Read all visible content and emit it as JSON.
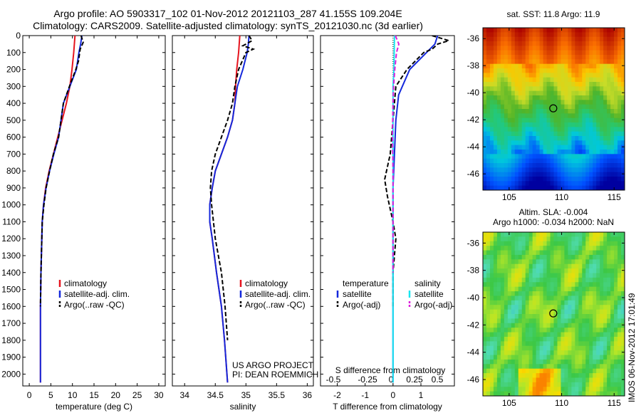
{
  "header": {
    "line1": "Argo profile: AO 5903317_102 01-Nov-2012 20121103_287 41.155S 109.204E",
    "line2": "Climatology: CARS2009. Satellite-adjusted climatology: synTS_20121030.nc (3d earlier)"
  },
  "footer_stamp": "IMOS 06-Nov-2012 17:01:49",
  "colors": {
    "climatology": "#e6141e",
    "satellite": "#1428dc",
    "argo": "#000000",
    "sat_salinity": "#19e6f0",
    "argo_salinity": "#dc1edc"
  },
  "chart_data": [
    {
      "type": "line",
      "id": "temperature",
      "xlabel": "temperature (deg C)",
      "ylabel": "",
      "xlim": [
        -1.5,
        31.5
      ],
      "ylim": [
        2070,
        0
      ],
      "xticks": [
        0,
        5,
        10,
        15,
        20,
        25,
        30
      ],
      "yticks": [
        0,
        100,
        200,
        300,
        400,
        500,
        600,
        700,
        800,
        900,
        1000,
        1100,
        1200,
        1300,
        1400,
        1500,
        1600,
        1700,
        1800,
        1900,
        2000
      ],
      "series": [
        {
          "name": "climatology",
          "style": "solid",
          "color": "#e6141e",
          "x": [
            10.6,
            10.3,
            9.9,
            9.4,
            8.6,
            7.6,
            6.6,
            5.6,
            4.6,
            3.8,
            3.3,
            3.0,
            2.9,
            2.7,
            2.6,
            2.6,
            2.6
          ],
          "y": [
            0,
            100,
            200,
            300,
            400,
            500,
            600,
            700,
            800,
            900,
            1000,
            1100,
            1200,
            1400,
            1600,
            1800,
            2050
          ]
        },
        {
          "name": "satellite-adj. clim.",
          "style": "solid",
          "color": "#1428dc",
          "x": [
            12.2,
            11.9,
            11.5,
            10.9,
            9.4,
            7.9,
            6.8,
            5.7,
            4.7,
            3.9,
            3.3,
            3.0,
            2.9,
            2.7,
            2.6,
            2.6,
            2.6
          ],
          "y": [
            0,
            50,
            100,
            200,
            300,
            400,
            600,
            700,
            800,
            900,
            1000,
            1100,
            1200,
            1400,
            1600,
            1800,
            2050
          ]
        },
        {
          "name": "Argo(..raw -QC)",
          "style": "dashed",
          "color": "#000000",
          "x": [
            12.0,
            12.5,
            11.8,
            11.4,
            10.8,
            9.3,
            7.9,
            6.8,
            5.6,
            4.7,
            3.9,
            3.4,
            3.0,
            2.9,
            2.7,
            2.6
          ],
          "y": [
            0,
            40,
            80,
            150,
            200,
            300,
            400,
            600,
            700,
            800,
            900,
            1000,
            1100,
            1200,
            1400,
            1600
          ]
        }
      ],
      "legend": [
        "climatology",
        "satellite-adj. clim.",
        "Argo(..raw -QC)"
      ],
      "legend_position": "lower-center"
    },
    {
      "type": "line",
      "id": "salinity",
      "xlabel": "salinity",
      "ylabel": "",
      "xlim": [
        33.8,
        36.1
      ],
      "ylim": [
        2070,
        0
      ],
      "xticks": [
        34,
        34.5,
        35,
        35.5,
        36
      ],
      "xticklabels": [
        "34",
        "34.5",
        "35",
        "35.5",
        "36"
      ],
      "series": [
        {
          "name": "climatology",
          "style": "solid",
          "color": "#e6141e",
          "x": [
            34.9,
            34.88,
            34.85,
            34.83,
            34.82,
            34.78,
            34.7,
            34.6,
            34.5,
            34.45,
            34.41,
            34.41,
            34.45,
            34.52,
            34.6,
            34.65,
            34.7
          ],
          "y": [
            0,
            100,
            200,
            300,
            400,
            500,
            600,
            700,
            800,
            900,
            1000,
            1100,
            1200,
            1400,
            1600,
            1800,
            2050
          ]
        },
        {
          "name": "satellite-adj. clim.",
          "style": "solid",
          "color": "#1428dc",
          "x": [
            35.05,
            35.04,
            35.02,
            34.95,
            34.86,
            34.82,
            34.78,
            34.7,
            34.6,
            34.5,
            34.45,
            34.41,
            34.41,
            34.45,
            34.52,
            34.6,
            34.65,
            34.7
          ],
          "y": [
            0,
            50,
            100,
            200,
            300,
            400,
            500,
            600,
            700,
            800,
            900,
            1000,
            1100,
            1200,
            1400,
            1600,
            1800,
            2050
          ]
        },
        {
          "name": "Argo(..raw -QC)",
          "style": "dashed",
          "color": "#000000",
          "x": [
            35.05,
            35.1,
            34.95,
            35.12,
            35.0,
            34.88,
            34.82,
            34.78,
            34.7,
            34.6,
            34.5,
            34.44,
            34.42,
            34.44,
            34.5,
            34.6,
            34.66,
            34.7
          ],
          "y": [
            0,
            30,
            60,
            80,
            100,
            200,
            300,
            400,
            500,
            600,
            700,
            800,
            900,
            1000,
            1200,
            1400,
            1600,
            1800
          ]
        }
      ],
      "legend": [
        "climatology",
        "satellite-adj. clim.",
        "Argo(..raw -QC)"
      ],
      "legend_position": "lower-center",
      "annotation": [
        "US ARGO PROJECT",
        "PI: DEAN ROEMMICH"
      ]
    },
    {
      "type": "line",
      "id": "difference",
      "xlabel": "T difference from climatology",
      "xlabel_top": "S difference from climatology",
      "ylabel": "",
      "xlim": [
        -2.6,
        2.2
      ],
      "ylim": [
        2070,
        0
      ],
      "xticks": [
        -2,
        -1,
        0,
        1
      ],
      "top_xticks": [
        -0.5,
        -0.25,
        0,
        0.25,
        0.5
      ],
      "zero_line": "dotted",
      "series": [
        {
          "name": "temperature satellite",
          "style": "solid",
          "color": "#1428dc",
          "axis": "T",
          "x": [
            1.6,
            1.5,
            1.2,
            0.6,
            0.2,
            0.1,
            0.05,
            0.0,
            0.0,
            0.0,
            0.0,
            0.0,
            0.0
          ],
          "y": [
            0,
            50,
            100,
            200,
            350,
            500,
            700,
            900,
            1100,
            1300,
            1600,
            1800,
            2050
          ]
        },
        {
          "name": "temperature Argo(-adj)",
          "style": "dashed",
          "color": "#000000",
          "axis": "T",
          "x": [
            1.4,
            2.0,
            1.6,
            1.4,
            1.1,
            0.5,
            0.1,
            0.0,
            -0.1,
            -0.3,
            -0.2,
            0.0,
            0.1,
            0.0,
            0.0
          ],
          "y": [
            0,
            30,
            50,
            80,
            100,
            200,
            300,
            500,
            700,
            850,
            950,
            1100,
            1200,
            1400,
            1600
          ]
        },
        {
          "name": "salinity satellite",
          "style": "solid",
          "color": "#19e6f0",
          "axis": "S",
          "x": [
            0.05,
            0.04,
            0.03,
            0.0,
            0.0,
            0.0,
            0.0,
            0.0,
            0.0,
            0.0
          ],
          "y": [
            0,
            100,
            200,
            300,
            500,
            700,
            900,
            1200,
            1600,
            2050
          ]
        },
        {
          "name": "salinity Argo(-adj)",
          "style": "dashed",
          "color": "#dc1edc",
          "axis": "S",
          "x": [
            0.08,
            0.2,
            0.12,
            0.06,
            0.02,
            0.0,
            -0.02,
            0.0,
            0.0,
            0.0
          ],
          "y": [
            0,
            50,
            100,
            200,
            300,
            400,
            600,
            800,
            1000,
            1400
          ]
        }
      ],
      "legend_titles": [
        "temperature",
        "salinity"
      ],
      "legend_left": [
        "satellite",
        "Argo(-adj)"
      ],
      "legend_right": [
        "satellite",
        "Argo(-adj)"
      ]
    },
    {
      "type": "heatmap",
      "id": "sst-map",
      "title": "sat. SST: 11.8  Argo: 11.9",
      "xlim": [
        102.5,
        116
      ],
      "ylim": [
        -47.2,
        -35.2
      ],
      "xticks": [
        105,
        110,
        115
      ],
      "yticks": [
        -36,
        -38,
        -40,
        -42,
        -44,
        -46
      ],
      "marker": {
        "lon": 109.204,
        "lat": -41.155
      }
    },
    {
      "type": "heatmap",
      "id": "sla-map",
      "title": "Altim. SLA: -0.004",
      "subtitle": "Argo h1000: -0.034  h2000: NaN",
      "xlim": [
        102.5,
        116
      ],
      "ylim": [
        -47.2,
        -35.2
      ],
      "xticks": [
        105,
        110,
        115
      ],
      "yticks": [
        -36,
        -38,
        -40,
        -42,
        -44,
        -46
      ],
      "marker": {
        "lon": 109.204,
        "lat": -41.155
      }
    }
  ]
}
